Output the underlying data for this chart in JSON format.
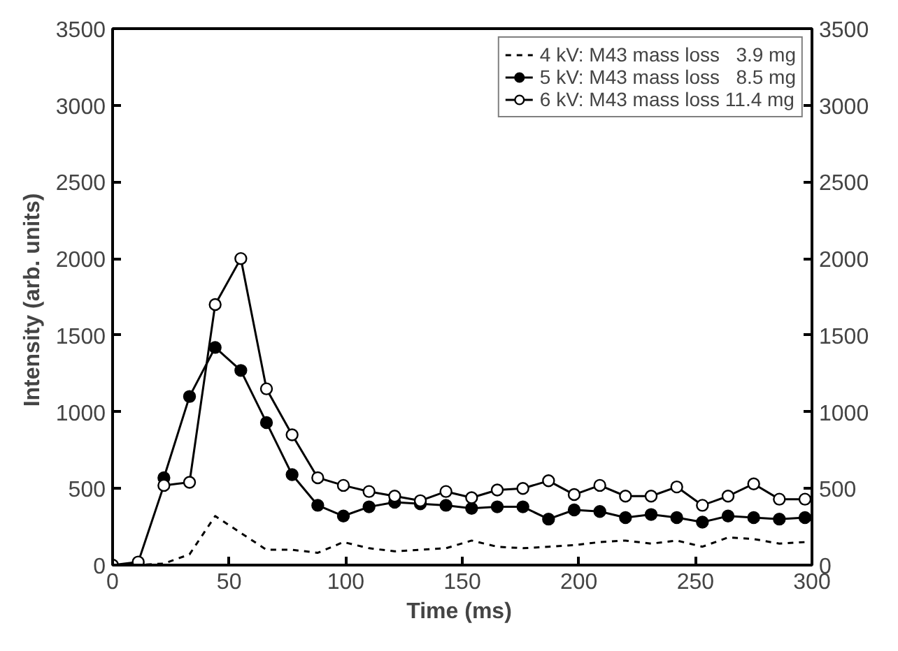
{
  "chart_data": {
    "type": "line",
    "xlabel": "Time  (ms)",
    "ylabel": "Intensity  (arb. units)",
    "x": [
      0,
      11,
      22,
      33,
      44,
      55,
      66,
      77,
      88,
      99,
      110,
      121,
      132,
      143,
      154,
      165,
      176,
      187,
      198,
      209,
      220,
      231,
      242,
      253,
      264,
      275,
      286,
      297
    ],
    "xlim": [
      0,
      300
    ],
    "xticks": [
      0,
      50,
      100,
      150,
      200,
      250,
      300
    ],
    "ylim": [
      0,
      3500
    ],
    "yticks": [
      0,
      500,
      1000,
      1500,
      2000,
      2500,
      3000,
      3500
    ],
    "y2lim": [
      0,
      3500
    ],
    "y2ticks": [
      0,
      500,
      1000,
      1500,
      2000,
      2500,
      3000,
      3500
    ],
    "grid": false,
    "legend": "top right",
    "series": [
      {
        "name": "4 kV: M43 mass loss   3.9 mg",
        "color": "#000000",
        "marker": "none",
        "line_style": "dashed",
        "values": [
          0,
          0,
          10,
          70,
          320,
          210,
          100,
          100,
          80,
          150,
          110,
          90,
          100,
          110,
          160,
          120,
          110,
          120,
          130,
          150,
          160,
          140,
          160,
          120,
          180,
          170,
          140,
          150
        ]
      },
      {
        "name": "5 kV: M43 mass loss   8.5 mg",
        "color": "#000000",
        "marker": "circle",
        "line_style": "solid",
        "values": [
          null,
          null,
          570,
          1100,
          1420,
          1270,
          930,
          590,
          390,
          320,
          380,
          410,
          400,
          390,
          370,
          380,
          380,
          300,
          360,
          350,
          310,
          330,
          310,
          280,
          320,
          310,
          300,
          310
        ]
      },
      {
        "name": "6 kV: M43 mass loss 11.4 mg",
        "color": "#000000",
        "marker": "circle",
        "line_style": "solid",
        "values": [
          0,
          20,
          520,
          540,
          1700,
          2000,
          1150,
          850,
          570,
          520,
          480,
          450,
          420,
          480,
          440,
          490,
          500,
          550,
          460,
          520,
          450,
          450,
          510,
          390,
          450,
          530,
          430,
          430
        ]
      }
    ]
  }
}
